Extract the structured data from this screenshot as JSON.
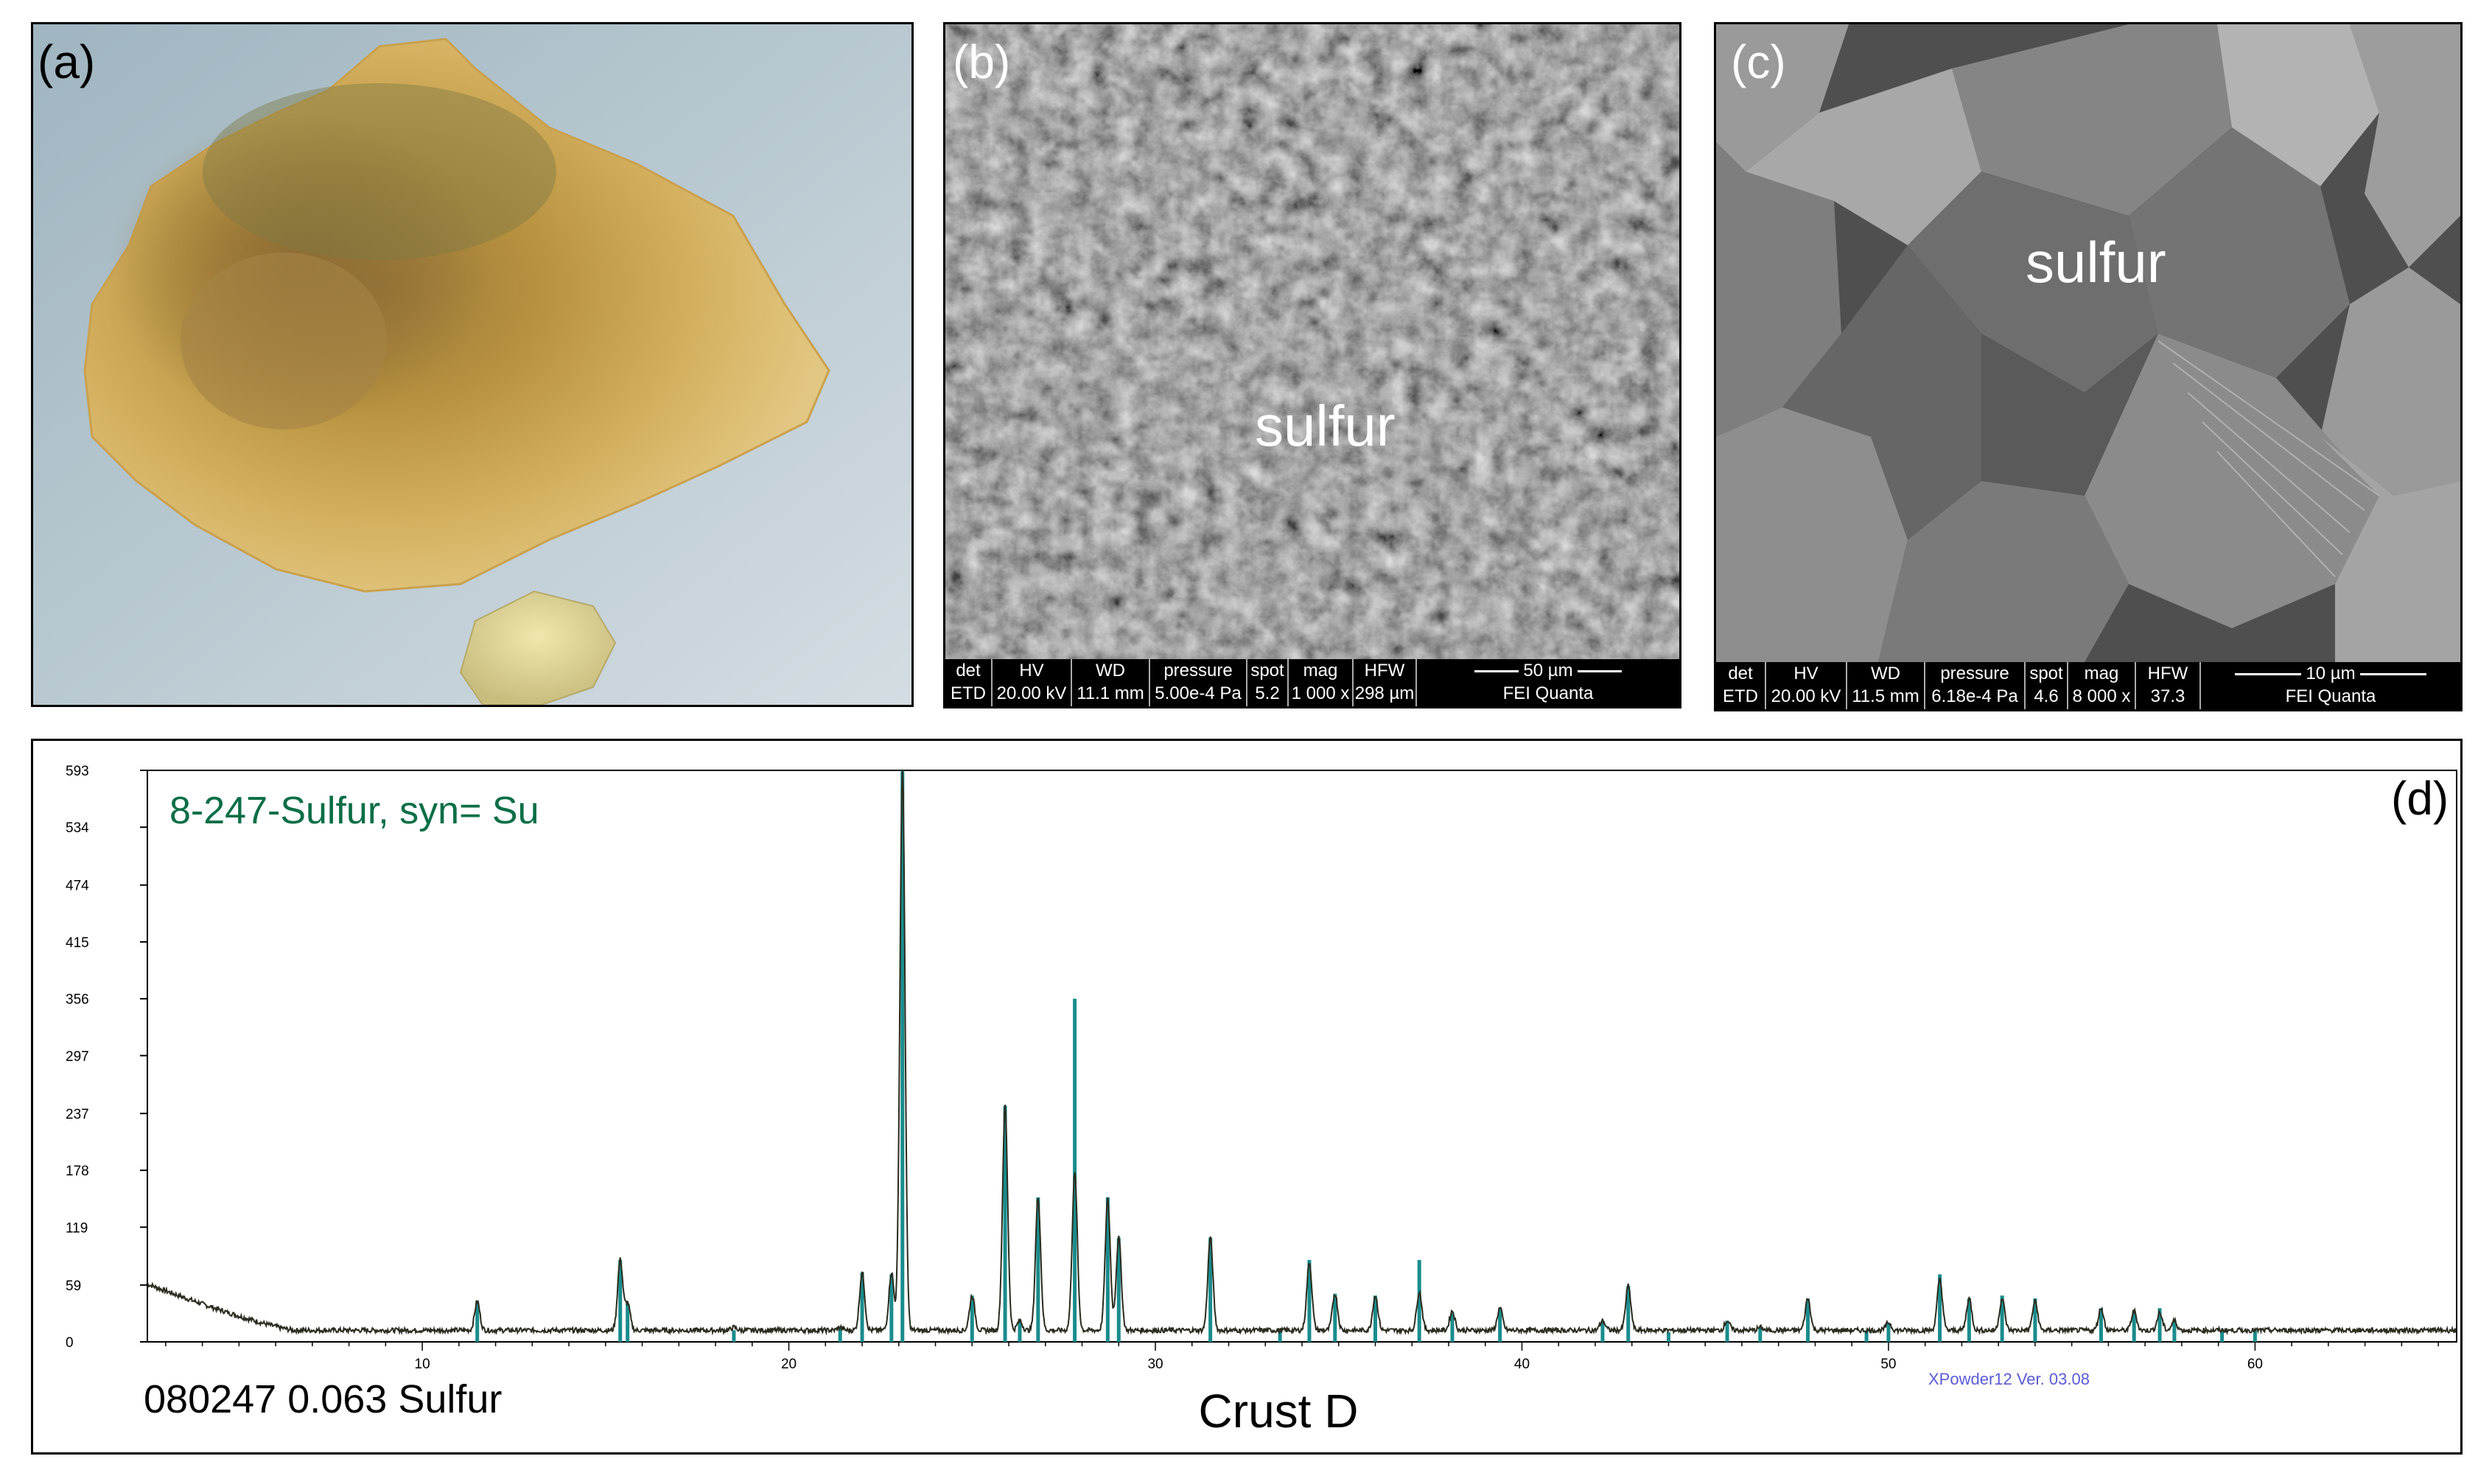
{
  "panels": {
    "a": {
      "label": "(a)"
    },
    "b": {
      "label": "(b)",
      "annotation": "sulfur",
      "sem_bar": {
        "headers": [
          "det",
          "HV",
          "WD",
          "pressure",
          "spot",
          "mag",
          "HFW"
        ],
        "values": [
          "ETD",
          "20.00 kV",
          "11.1 mm",
          "5.00e-4 Pa",
          "5.2",
          "1 000 x",
          "298 µm"
        ],
        "scale": "50 µm",
        "brand": "FEI Quanta"
      }
    },
    "c": {
      "label": "(c)",
      "annotation": "sulfur",
      "sem_bar": {
        "headers": [
          "det",
          "HV",
          "WD",
          "pressure",
          "spot",
          "mag",
          "HFW"
        ],
        "values": [
          "ETD",
          "20.00 kV",
          "11.5 mm",
          "6.18e-4 Pa",
          "4.6",
          "8 000 x",
          "37.3 µm"
        ],
        "scale": "10 µm",
        "brand": "FEI Quanta"
      }
    }
  },
  "chart_data": {
    "type": "line",
    "panel_label": "(d)",
    "title": "8-247-Sulfur, syn= Su",
    "bottom_left_text": "080247  0.063 Sulfur",
    "xlabel": "Crust D",
    "software": "XPowder12 Ver. 03.08",
    "xlim": [
      2.5,
      65.5
    ],
    "ylim": [
      0,
      593
    ],
    "xticks": [
      10,
      20,
      30,
      40,
      50,
      60
    ],
    "yticks": [
      0,
      59,
      119,
      178,
      237,
      297,
      356,
      415,
      474,
      534,
      593
    ],
    "grid": false,
    "colors": {
      "pattern": "#2b2b1e",
      "reference_sticks": "#1a8c8c",
      "title": "#0a6e46",
      "software": "#5b5bd6"
    },
    "background": {
      "start_intensity": 60,
      "decay_end": 6.5,
      "base_intensity": 12
    },
    "peaks": [
      {
        "x": 11.5,
        "y": 42
      },
      {
        "x": 15.4,
        "y": 85
      },
      {
        "x": 15.6,
        "y": 40
      },
      {
        "x": 18.5,
        "y": 15
      },
      {
        "x": 21.4,
        "y": 15
      },
      {
        "x": 22.0,
        "y": 72
      },
      {
        "x": 22.8,
        "y": 72
      },
      {
        "x": 23.1,
        "y": 593
      },
      {
        "x": 25.0,
        "y": 48
      },
      {
        "x": 25.9,
        "y": 245
      },
      {
        "x": 26.3,
        "y": 22
      },
      {
        "x": 26.8,
        "y": 150
      },
      {
        "x": 27.8,
        "y": 175
      },
      {
        "x": 28.7,
        "y": 148
      },
      {
        "x": 29.0,
        "y": 108
      },
      {
        "x": 31.5,
        "y": 108
      },
      {
        "x": 34.2,
        "y": 83
      },
      {
        "x": 34.9,
        "y": 50
      },
      {
        "x": 36.0,
        "y": 48
      },
      {
        "x": 37.2,
        "y": 52
      },
      {
        "x": 38.1,
        "y": 32
      },
      {
        "x": 39.4,
        "y": 35
      },
      {
        "x": 42.2,
        "y": 22
      },
      {
        "x": 42.9,
        "y": 58
      },
      {
        "x": 45.6,
        "y": 22
      },
      {
        "x": 46.5,
        "y": 15
      },
      {
        "x": 47.8,
        "y": 45
      },
      {
        "x": 50.0,
        "y": 20
      },
      {
        "x": 51.4,
        "y": 65
      },
      {
        "x": 52.2,
        "y": 45
      },
      {
        "x": 53.1,
        "y": 45
      },
      {
        "x": 54.0,
        "y": 42
      },
      {
        "x": 55.8,
        "y": 35
      },
      {
        "x": 56.7,
        "y": 32
      },
      {
        "x": 57.4,
        "y": 30
      },
      {
        "x": 57.8,
        "y": 22
      }
    ],
    "reference_sticks": [
      {
        "x": 11.5,
        "y": 42
      },
      {
        "x": 15.4,
        "y": 85
      },
      {
        "x": 15.6,
        "y": 40
      },
      {
        "x": 18.5,
        "y": 12
      },
      {
        "x": 21.4,
        "y": 14
      },
      {
        "x": 22.0,
        "y": 72
      },
      {
        "x": 22.8,
        "y": 70
      },
      {
        "x": 23.1,
        "y": 593
      },
      {
        "x": 25.0,
        "y": 48
      },
      {
        "x": 25.9,
        "y": 245
      },
      {
        "x": 26.3,
        "y": 22
      },
      {
        "x": 26.8,
        "y": 150
      },
      {
        "x": 27.8,
        "y": 356
      },
      {
        "x": 28.7,
        "y": 150
      },
      {
        "x": 29.0,
        "y": 108
      },
      {
        "x": 31.5,
        "y": 108
      },
      {
        "x": 33.4,
        "y": 12
      },
      {
        "x": 34.2,
        "y": 85
      },
      {
        "x": 34.9,
        "y": 50
      },
      {
        "x": 36.0,
        "y": 48
      },
      {
        "x": 37.2,
        "y": 85
      },
      {
        "x": 38.1,
        "y": 30
      },
      {
        "x": 39.4,
        "y": 35
      },
      {
        "x": 42.2,
        "y": 22
      },
      {
        "x": 42.9,
        "y": 58
      },
      {
        "x": 44.0,
        "y": 10
      },
      {
        "x": 45.6,
        "y": 22
      },
      {
        "x": 46.5,
        "y": 15
      },
      {
        "x": 47.8,
        "y": 45
      },
      {
        "x": 49.4,
        "y": 12
      },
      {
        "x": 50.0,
        "y": 20
      },
      {
        "x": 51.4,
        "y": 70
      },
      {
        "x": 52.2,
        "y": 45
      },
      {
        "x": 53.1,
        "y": 48
      },
      {
        "x": 54.0,
        "y": 45
      },
      {
        "x": 55.8,
        "y": 35
      },
      {
        "x": 56.7,
        "y": 32
      },
      {
        "x": 57.4,
        "y": 35
      },
      {
        "x": 57.8,
        "y": 22
      },
      {
        "x": 59.1,
        "y": 12
      },
      {
        "x": 60.0,
        "y": 12
      }
    ]
  }
}
